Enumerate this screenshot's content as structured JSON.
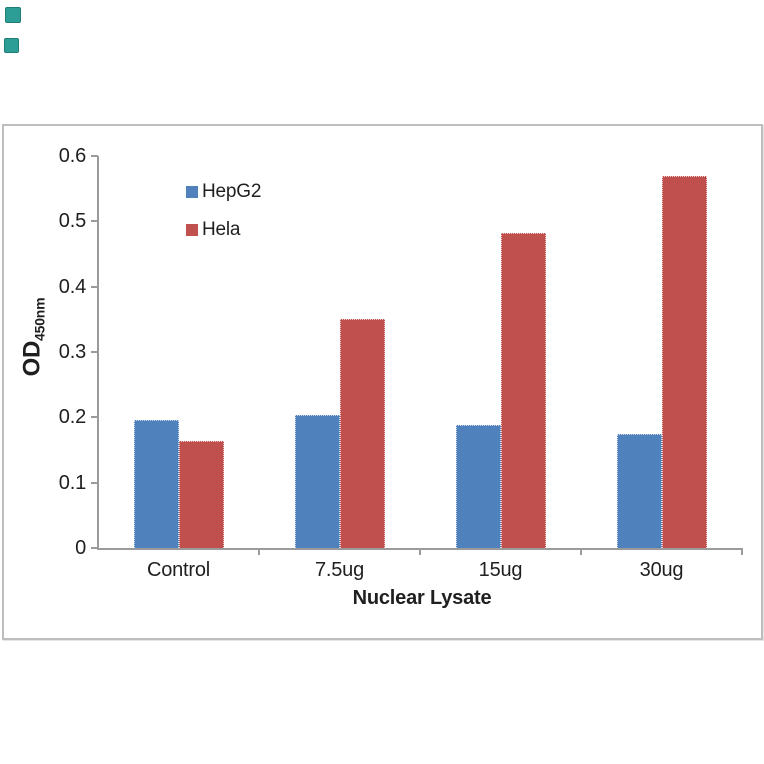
{
  "page": {
    "background": "#ffffff",
    "bullet_icons": {
      "color": "#2d9e95",
      "border_color": "#1f7d76",
      "count": 2
    }
  },
  "chart_data": {
    "type": "bar",
    "title": "",
    "categories": [
      "Control",
      "7.5ug",
      "15ug",
      "30ug"
    ],
    "series": [
      {
        "name": "HepG2",
        "color": "#4F81BD",
        "values": [
          0.196,
          0.203,
          0.188,
          0.175
        ]
      },
      {
        "name": "Hela",
        "color": "#C0504D",
        "values": [
          0.164,
          0.351,
          0.482,
          0.57
        ]
      }
    ],
    "xlabel": "Nuclear Lysate",
    "ylabel_main": "OD",
    "ylabel_subscript": "450nm",
    "ylim": [
      0,
      0.6
    ],
    "yticks": [
      0,
      0.1,
      0.2,
      0.3,
      0.4,
      0.5,
      0.6
    ],
    "ytick_labels": [
      "0",
      "0.1",
      "0.2",
      "0.3",
      "0.4",
      "0.5",
      "0.6"
    ],
    "grid": false,
    "legend_position": "inside-upper-left",
    "axis_color": "#9b9b9b",
    "frame_color": "#bdbdbd",
    "text_color": "#1f1f1f"
  }
}
